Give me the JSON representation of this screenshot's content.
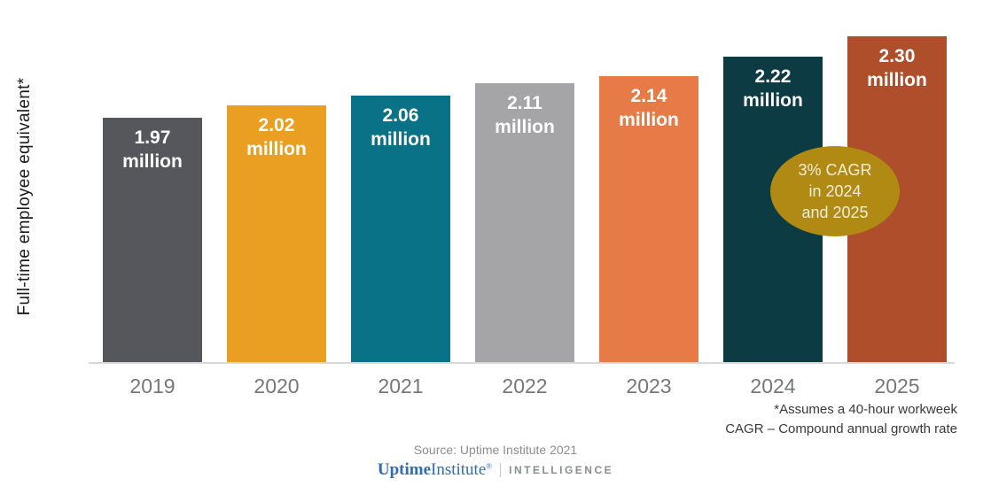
{
  "chart_data": {
    "type": "bar",
    "ylabel": "Full-time employee equivalent*",
    "xlabel": "",
    "categories": [
      "2019",
      "2020",
      "2021",
      "2022",
      "2023",
      "2024",
      "2025"
    ],
    "values": [
      1.97,
      2.02,
      2.06,
      2.11,
      2.14,
      2.22,
      2.3
    ],
    "value_axis_visible": false,
    "grid": false,
    "legend": false,
    "axis_line_color": "#d9d9d9",
    "bars": [
      {
        "year": "2019",
        "value": 1.97,
        "value_label": "1.97",
        "unit_label": "million",
        "color": "#55575c"
      },
      {
        "year": "2020",
        "value": 2.02,
        "value_label": "2.02",
        "unit_label": "million",
        "color": "#ea9f23"
      },
      {
        "year": "2021",
        "value": 2.06,
        "value_label": "2.06",
        "unit_label": "million",
        "color": "#0a7287"
      },
      {
        "year": "2022",
        "value": 2.11,
        "value_label": "2.11",
        "unit_label": "million",
        "color": "#a5a4a7"
      },
      {
        "year": "2023",
        "value": 2.14,
        "value_label": "2.14",
        "unit_label": "million",
        "color": "#e77b48"
      },
      {
        "year": "2024",
        "value": 2.22,
        "value_label": "2.22",
        "unit_label": "million",
        "color": "#0c3b44"
      },
      {
        "year": "2025",
        "value": 2.3,
        "value_label": "2.30",
        "unit_label": "million",
        "color": "#af4e2b"
      }
    ],
    "annotation": {
      "shape": "ellipse",
      "fill": "#b08a12",
      "text_color": "#f2eddb",
      "lines": [
        "3% CAGR",
        "in 2024",
        "and 2025"
      ]
    }
  },
  "footnotes": [
    "*Assumes a 40-hour workweek",
    "CAGR – Compound annual growth rate"
  ],
  "source": "Source: Uptime Institute 2021",
  "logo": {
    "uptime": "Uptime",
    "institute": "Institute",
    "reg": "®",
    "intelligence": "INTELLIGENCE"
  }
}
